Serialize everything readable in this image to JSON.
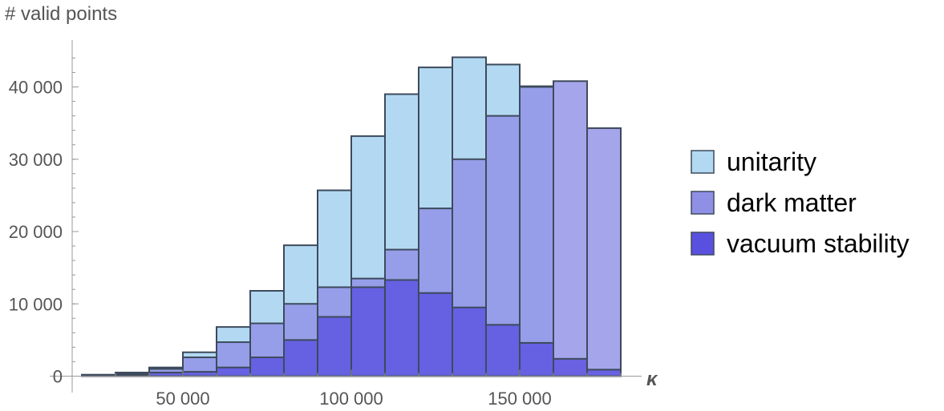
{
  "chart_data": {
    "type": "bar",
    "title": "",
    "xlabel": "κ",
    "ylabel": "# valid points",
    "bin_width": 10000,
    "bin_starts": [
      20000,
      30000,
      40000,
      50000,
      60000,
      70000,
      80000,
      90000,
      100000,
      110000,
      120000,
      130000,
      140000,
      150000,
      160000,
      170000
    ],
    "series": [
      {
        "name": "unitarity",
        "color": "#b3d9f2",
        "values": [
          200,
          500,
          1200,
          3300,
          6800,
          11800,
          18100,
          25700,
          33200,
          39000,
          42700,
          44100,
          43100,
          40100,
          0,
          0
        ]
      },
      {
        "name": "dark matter",
        "color": "#8f8fe6",
        "values": [
          150,
          400,
          1000,
          2600,
          4700,
          7300,
          10000,
          12300,
          13500,
          17500,
          23200,
          30000,
          36000,
          40000,
          40800,
          34300
        ]
      },
      {
        "name": "vacuum stability",
        "color": "#5a50e0",
        "values": [
          80,
          200,
          500,
          600,
          1200,
          2600,
          5000,
          8200,
          12300,
          13300,
          11500,
          9500,
          7100,
          4600,
          2400,
          900
        ]
      }
    ],
    "x_ticks": [
      50000,
      100000,
      150000
    ],
    "x_tick_labels": [
      "50 000",
      "100 000",
      "150 000"
    ],
    "y_ticks": [
      0,
      10000,
      20000,
      30000,
      40000
    ],
    "y_tick_labels": [
      "0",
      "10 000",
      "20 000",
      "30 000",
      "40 000"
    ],
    "xlim": [
      20000,
      180000
    ],
    "ylim": [
      0,
      46000
    ],
    "grid": false,
    "legend": "right"
  }
}
